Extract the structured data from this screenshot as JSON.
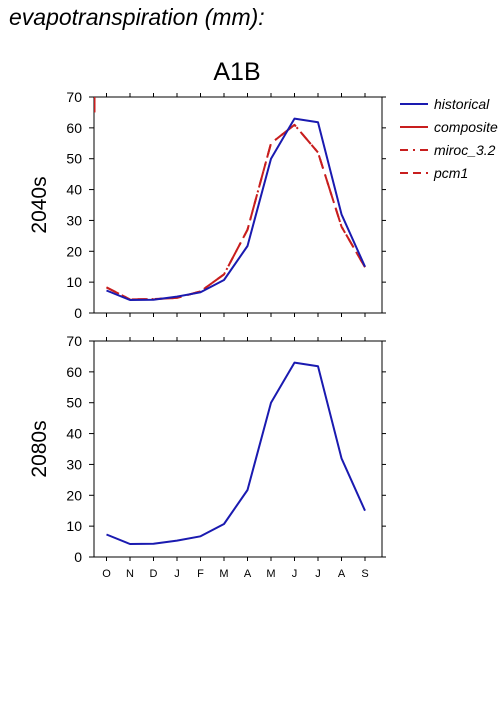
{
  "page": {
    "title": "evapotranspiration (mm):"
  },
  "scenario": "A1B",
  "legend": {
    "placement": "right",
    "entries": [
      {
        "name": "historical",
        "color": "#1a1ab0",
        "dash": "solid"
      },
      {
        "name": "composite",
        "color": "#c81e1e",
        "dash": "solid"
      },
      {
        "name": "miroc_3.2",
        "color": "#c81e1e",
        "dash": "dashdot"
      },
      {
        "name": "pcm1",
        "color": "#c81e1e",
        "dash": "dashed"
      }
    ]
  },
  "chart_data": [
    {
      "type": "line",
      "panel": "2040s",
      "ylabel": "2040s",
      "ylim": [
        0,
        70
      ],
      "yticks": [
        0,
        10,
        20,
        30,
        40,
        50,
        60,
        70
      ],
      "categories": [
        "O",
        "N",
        "D",
        "J",
        "F",
        "M",
        "A",
        "M",
        "J",
        "J",
        "A",
        "S"
      ],
      "show_xtick_labels": false,
      "series": [
        {
          "name": "historical",
          "color": "#1a1ab0",
          "dash": "solid",
          "values": [
            7.3,
            4.2,
            4.3,
            5.3,
            6.7,
            10.7,
            21.7,
            50,
            63,
            61.8,
            32,
            15
          ]
        },
        {
          "name": "composite",
          "color": "#c81e1e",
          "dash": "solid",
          "values": [
            65,
            null,
            null,
            null,
            null,
            null,
            null,
            null,
            null,
            null,
            null,
            null
          ],
          "partial": true
        },
        {
          "name": "miroc_3.2",
          "color": "#c81e1e",
          "dash": "dashdot",
          "values": [
            8.3,
            4.4,
            4.5,
            4.9,
            7.0,
            12.5,
            27,
            55,
            61,
            52,
            28,
            14.8
          ]
        },
        {
          "name": "pcm1",
          "color": "#c81e1e",
          "dash": "dashed",
          "values": [
            8.3,
            4.4,
            4.5,
            4.9,
            7.0,
            12.5,
            27,
            55,
            61,
            52,
            28,
            14.8
          ]
        }
      ]
    },
    {
      "type": "line",
      "panel": "2080s",
      "ylabel": "2080s",
      "ylim": [
        0,
        70
      ],
      "yticks": [
        0,
        10,
        20,
        30,
        40,
        50,
        60,
        70
      ],
      "categories": [
        "O",
        "N",
        "D",
        "J",
        "F",
        "M",
        "A",
        "M",
        "J",
        "J",
        "A",
        "S"
      ],
      "show_xtick_labels": true,
      "series": [
        {
          "name": "historical",
          "color": "#1a1ab0",
          "dash": "solid",
          "values": [
            7.3,
            4.2,
            4.3,
            5.3,
            6.7,
            10.7,
            21.7,
            50,
            63,
            61.8,
            32,
            15
          ]
        }
      ]
    }
  ]
}
